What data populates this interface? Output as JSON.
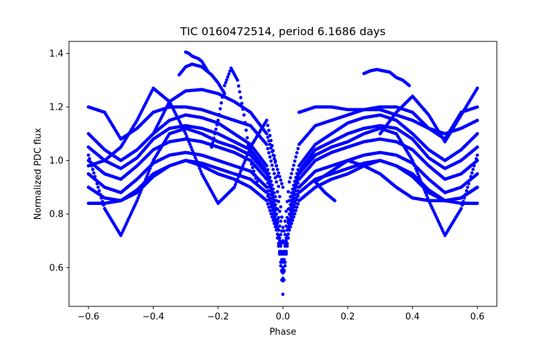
{
  "chart_data": {
    "type": "scatter",
    "title": "TIC 0160472514, period 6.1686 days",
    "xlabel": "Phase",
    "ylabel": "Normalized PDC flux",
    "xlim": [
      -0.66,
      0.66
    ],
    "ylim": [
      0.455,
      1.445
    ],
    "xticks": [
      -0.6,
      -0.4,
      -0.2,
      0.0,
      0.2,
      0.4,
      0.6
    ],
    "xtick_labels": [
      "−0.6",
      "−0.4",
      "−0.2",
      "0.0",
      "0.2",
      "0.4",
      "0.6"
    ],
    "yticks": [
      0.6,
      0.8,
      1.0,
      1.2,
      1.4
    ],
    "ytick_labels": [
      "0.6",
      "0.8",
      "1.0",
      "1.2",
      "1.4"
    ],
    "grid": false,
    "legend": "none",
    "color": "#0000ff",
    "series": [
      {
        "x": [
          -0.6,
          -0.55,
          -0.5,
          -0.45,
          -0.4,
          -0.35,
          -0.3,
          -0.25,
          -0.2,
          -0.15,
          -0.1,
          -0.05,
          -0.02,
          0.0,
          0.02,
          0.05,
          0.1,
          0.15,
          0.2,
          0.25,
          0.3,
          0.35,
          0.4,
          0.45,
          0.5,
          0.55,
          0.6
        ],
        "y": [
          1.0,
          0.95,
          0.93,
          0.98,
          1.04,
          1.07,
          1.08,
          1.07,
          1.05,
          1.03,
          1.0,
          0.93,
          0.8,
          0.62,
          0.8,
          0.93,
          1.0,
          1.03,
          1.05,
          1.07,
          1.08,
          1.07,
          1.04,
          0.98,
          0.93,
          0.95,
          1.0
        ]
      },
      {
        "x": [
          -0.6,
          -0.55,
          -0.5,
          -0.45,
          -0.4,
          -0.35,
          -0.3,
          -0.25,
          -0.2,
          -0.15,
          -0.1,
          -0.05,
          -0.02,
          0.0,
          0.02,
          0.05,
          0.1,
          0.15,
          0.2,
          0.25,
          0.3,
          0.35,
          0.4,
          0.45,
          0.5,
          0.55,
          0.6
        ],
        "y": [
          1.05,
          1.0,
          0.97,
          1.01,
          1.08,
          1.12,
          1.13,
          1.12,
          1.1,
          1.07,
          1.04,
          0.96,
          0.82,
          0.58,
          0.82,
          0.96,
          1.04,
          1.07,
          1.1,
          1.12,
          1.13,
          1.12,
          1.08,
          1.01,
          0.97,
          1.0,
          1.05
        ]
      },
      {
        "x": [
          -0.6,
          -0.55,
          -0.5,
          -0.45,
          -0.4,
          -0.35,
          -0.3,
          -0.25,
          -0.2,
          -0.15,
          -0.1,
          -0.05,
          -0.02,
          0.0,
          0.02,
          0.05,
          0.1,
          0.15,
          0.2,
          0.25,
          0.3,
          0.35,
          0.4,
          0.45,
          0.5,
          0.55,
          0.6
        ],
        "y": [
          0.95,
          0.9,
          0.88,
          0.93,
          0.99,
          1.02,
          1.03,
          1.02,
          1.0,
          0.98,
          0.96,
          0.9,
          0.78,
          0.6,
          0.78,
          0.9,
          0.96,
          0.98,
          1.0,
          1.02,
          1.03,
          1.02,
          0.99,
          0.93,
          0.88,
          0.9,
          0.95
        ]
      },
      {
        "x": [
          -0.6,
          -0.55,
          -0.5,
          -0.45,
          -0.4,
          -0.35,
          -0.3,
          -0.25,
          -0.2,
          -0.15,
          -0.1,
          -0.05,
          -0.02,
          0.0,
          0.02,
          0.05,
          0.1,
          0.15,
          0.2,
          0.25,
          0.3,
          0.35,
          0.4,
          0.45,
          0.5,
          0.55,
          0.6
        ],
        "y": [
          1.1,
          1.04,
          1.0,
          1.04,
          1.1,
          1.15,
          1.17,
          1.16,
          1.14,
          1.1,
          1.06,
          0.98,
          0.85,
          0.66,
          0.85,
          0.98,
          1.06,
          1.1,
          1.14,
          1.16,
          1.17,
          1.15,
          1.1,
          1.04,
          1.0,
          1.04,
          1.1
        ]
      },
      {
        "x": [
          -0.6,
          -0.55,
          -0.5,
          -0.45,
          -0.4,
          -0.35,
          -0.3,
          -0.25,
          -0.2,
          -0.15,
          -0.1,
          -0.05,
          -0.02,
          0.0,
          0.02,
          0.05,
          0.1,
          0.15,
          0.2,
          0.25,
          0.3,
          0.35,
          0.4,
          0.45,
          0.5,
          0.55,
          0.6
        ],
        "y": [
          0.9,
          0.86,
          0.85,
          0.89,
          0.95,
          0.98,
          1.0,
          0.99,
          0.97,
          0.95,
          0.93,
          0.88,
          0.76,
          0.55,
          0.76,
          0.88,
          0.93,
          0.95,
          0.97,
          0.99,
          1.0,
          0.98,
          0.95,
          0.89,
          0.85,
          0.86,
          0.9
        ]
      },
      {
        "x": [
          -0.6,
          -0.55,
          -0.5,
          -0.45,
          -0.4,
          -0.35,
          -0.3,
          -0.25,
          -0.2,
          -0.15,
          -0.1,
          -0.05,
          -0.02,
          0.0,
          0.02,
          0.05,
          0.1,
          0.15,
          0.2,
          0.25,
          0.3,
          0.35,
          0.4,
          0.45,
          0.5,
          0.55,
          0.6
        ],
        "y": [
          1.02,
          0.82,
          0.72,
          0.85,
          1.0,
          1.1,
          1.12,
          1.1,
          1.07,
          1.05,
          1.02,
          0.95,
          0.82,
          0.5,
          0.82,
          0.95,
          1.02,
          1.05,
          1.07,
          1.1,
          1.12,
          1.1,
          1.0,
          0.85,
          0.72,
          0.82,
          1.02
        ]
      },
      {
        "x": [
          -0.6,
          -0.55,
          -0.5,
          -0.45,
          -0.4,
          -0.35,
          -0.3,
          -0.25,
          -0.2,
          -0.15,
          -0.1,
          -0.05,
          -0.02,
          0.0,
          0.02,
          0.05,
          0.1,
          0.15,
          0.2,
          0.25,
          0.3,
          0.35,
          0.4,
          0.45,
          0.5,
          0.55,
          0.6
        ],
        "y": [
          1.2,
          1.18,
          1.08,
          1.12,
          1.18,
          1.2,
          1.2,
          1.19,
          1.17,
          1.15,
          1.13,
          1.06,
          0.92,
          0.7,
          0.92,
          1.06,
          1.13,
          1.15,
          1.17,
          1.19,
          1.2,
          1.2,
          1.18,
          1.12,
          1.08,
          1.18,
          1.2
        ]
      },
      {
        "x": [
          -0.6,
          -0.55,
          -0.5,
          -0.45,
          -0.4,
          -0.35,
          -0.3,
          -0.25,
          -0.2,
          -0.15,
          -0.1,
          -0.05,
          -0.02,
          0.0,
          0.02,
          0.05,
          0.1,
          0.15,
          0.2,
          0.25,
          0.3,
          0.35,
          0.4,
          0.45,
          0.5,
          0.55,
          0.6
        ],
        "y": [
          0.84,
          0.84,
          0.85,
          0.88,
          0.94,
          0.98,
          1.0,
          0.98,
          0.95,
          0.93,
          0.9,
          0.85,
          0.74,
          0.56,
          0.74,
          0.85,
          0.9,
          0.93,
          0.95,
          0.98,
          1.0,
          0.98,
          0.94,
          0.88,
          0.85,
          0.84,
          0.84
        ]
      },
      {
        "x": [
          -0.6,
          -0.55,
          -0.5,
          -0.45,
          -0.4,
          -0.35,
          -0.3,
          -0.25,
          -0.2,
          -0.15,
          -0.1,
          -0.05,
          -0.02,
          0.0
        ],
        "y": [
          0.98,
          1.0,
          1.05,
          1.15,
          1.27,
          1.22,
          1.1,
          0.95,
          0.84,
          0.9,
          1.05,
          1.15,
          0.98,
          0.75
        ]
      },
      {
        "x": [
          -0.32,
          -0.3,
          -0.28,
          -0.25,
          -0.22,
          -0.2,
          -0.18
        ],
        "y": [
          1.32,
          1.35,
          1.36,
          1.35,
          1.32,
          1.29,
          1.25
        ]
      },
      {
        "x": [
          -0.3,
          -0.29,
          -0.28,
          -0.27,
          -0.26,
          -0.25,
          -0.24,
          -0.23
        ],
        "y": [
          1.405,
          1.4,
          1.39,
          1.385,
          1.38,
          1.37,
          1.35,
          1.33
        ]
      },
      {
        "x": [
          -0.22,
          -0.2,
          -0.18,
          -0.16,
          -0.14,
          -0.12,
          -0.1,
          -0.08
        ],
        "y": [
          1.05,
          1.15,
          1.28,
          1.345,
          1.3,
          1.17,
          1.0,
          0.92
        ]
      },
      {
        "x": [
          -0.4,
          -0.35,
          -0.3,
          -0.25,
          -0.2,
          -0.15,
          -0.1,
          -0.05,
          0.0
        ],
        "y": [
          1.1,
          1.22,
          1.26,
          1.265,
          1.25,
          1.22,
          1.18,
          1.1,
          0.9
        ]
      },
      {
        "x": [
          0.25,
          0.27,
          0.29,
          0.31,
          0.33,
          0.35,
          0.37,
          0.39
        ],
        "y": [
          1.325,
          1.335,
          1.34,
          1.335,
          1.33,
          1.31,
          1.3,
          1.28
        ]
      },
      {
        "x": [
          0.3,
          0.35,
          0.4,
          0.45,
          0.5,
          0.55,
          0.6
        ],
        "y": [
          1.1,
          1.18,
          1.24,
          1.17,
          1.07,
          1.17,
          1.27
        ]
      },
      {
        "x": [
          0.05,
          0.1,
          0.15,
          0.2,
          0.25,
          0.3,
          0.35,
          0.4,
          0.45,
          0.5,
          0.55,
          0.6
        ],
        "y": [
          1.18,
          1.2,
          1.2,
          1.19,
          1.19,
          1.19,
          1.17,
          1.15,
          1.12,
          1.1,
          1.12,
          1.15
        ]
      },
      {
        "x": [
          0.1,
          0.15,
          0.2,
          0.25,
          0.3,
          0.35,
          0.4,
          0.45,
          0.5,
          0.55,
          0.6
        ],
        "y": [
          0.92,
          0.96,
          1.0,
          0.98,
          0.95,
          0.9,
          0.86,
          0.85,
          0.85,
          0.86,
          0.9
        ]
      },
      {
        "x": [
          0.1,
          0.13,
          0.16
        ],
        "y": [
          0.92,
          0.88,
          0.85
        ]
      }
    ]
  }
}
